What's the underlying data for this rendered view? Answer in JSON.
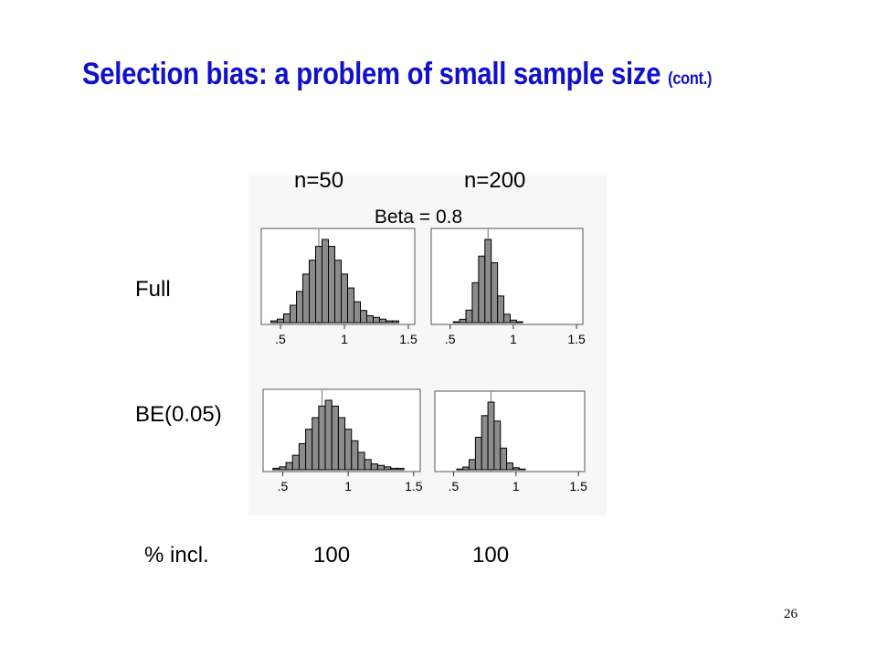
{
  "slide": {
    "title_main": "Selection bias: a problem of small sample size",
    "title_suffix": "(cont.)",
    "page_number": "26"
  },
  "columns": {
    "left": "n=50",
    "right": "n=200"
  },
  "rows": {
    "top": "Full",
    "bottom": "BE(0.05)"
  },
  "inclusion": {
    "label": "% incl.",
    "left": "100",
    "right": "100"
  },
  "colors": {
    "title": "#1111cc",
    "bar_fill": "#8c8c8c",
    "bar_stroke": "#000000",
    "ref_line": "#888888"
  },
  "chart_data": {
    "type": "bar",
    "title": "Beta = 0.8",
    "reference_value": 0.8,
    "xlim": [
      0.35,
      1.55
    ],
    "xticks": [
      ".5",
      "1",
      "1.5"
    ],
    "bin_width": 0.05,
    "panels": [
      {
        "row": "Full",
        "column": "n=50",
        "bin_centers": [
          0.45,
          0.5,
          0.55,
          0.6,
          0.65,
          0.7,
          0.75,
          0.8,
          0.85,
          0.9,
          0.95,
          1.0,
          1.05,
          1.1,
          1.15,
          1.2,
          1.25,
          1.3,
          1.35,
          1.4,
          1.45
        ],
        "values": [
          1,
          2,
          5,
          10,
          18,
          28,
          36,
          44,
          48,
          44,
          36,
          28,
          20,
          12,
          7,
          4,
          3,
          2,
          1,
          1,
          0
        ]
      },
      {
        "row": "Full",
        "column": "n=200",
        "bin_centers": [
          0.55,
          0.6,
          0.65,
          0.7,
          0.75,
          0.8,
          0.85,
          0.9,
          0.95,
          1.0,
          1.05
        ],
        "values": [
          1,
          4,
          15,
          48,
          80,
          100,
          72,
          32,
          10,
          3,
          1
        ]
      },
      {
        "row": "BE(0.05)",
        "column": "n=50",
        "bin_centers": [
          0.45,
          0.5,
          0.55,
          0.6,
          0.65,
          0.7,
          0.75,
          0.8,
          0.85,
          0.9,
          0.95,
          1.0,
          1.05,
          1.1,
          1.15,
          1.2,
          1.25,
          1.3,
          1.35,
          1.4,
          1.45
        ],
        "values": [
          1,
          2,
          5,
          10,
          18,
          28,
          36,
          44,
          48,
          44,
          36,
          28,
          20,
          12,
          7,
          4,
          3,
          2,
          1,
          1,
          0
        ]
      },
      {
        "row": "BE(0.05)",
        "column": "n=200",
        "bin_centers": [
          0.55,
          0.6,
          0.65,
          0.7,
          0.75,
          0.8,
          0.85,
          0.9,
          0.95,
          1.0,
          1.05
        ],
        "values": [
          1,
          4,
          15,
          48,
          80,
          100,
          72,
          32,
          10,
          3,
          1
        ]
      }
    ]
  }
}
